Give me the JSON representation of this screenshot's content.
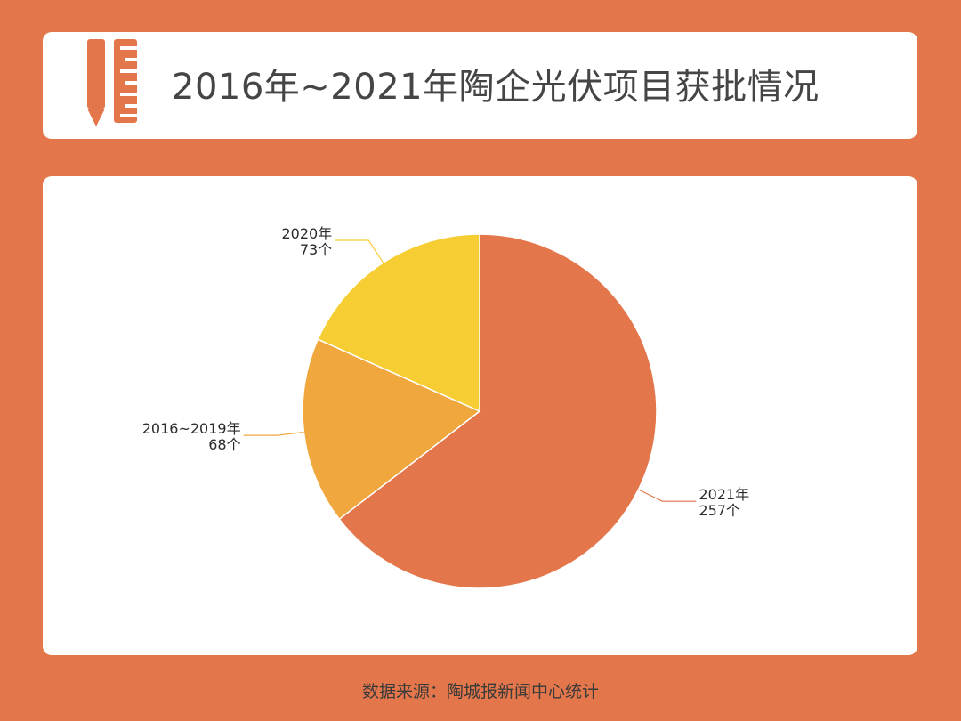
{
  "theme": {
    "background": "#E3764A",
    "card": "#FFFFFF",
    "icon_color": "#E3764A"
  },
  "header": {
    "icon": "pencil-ruler-icon",
    "title": "2016年~2021年陶企光伏项目获批情况"
  },
  "chart_data": {
    "type": "pie",
    "title": "2016年~2021年陶企光伏项目获批情况",
    "unit": "个",
    "slices": [
      {
        "label": "2021年",
        "value": 257,
        "value_text": "257个",
        "color": "#E3764A"
      },
      {
        "label": "2016~2019年",
        "value": 68,
        "value_text": "68个",
        "color": "#EFA73E"
      },
      {
        "label": "2020年",
        "value": 73,
        "value_text": "73个",
        "color": "#F6CD33"
      }
    ],
    "start": "12 o'clock",
    "direction": "clockwise",
    "legend": "none",
    "labels": "outside with leader lines"
  },
  "footer": {
    "source": "数据来源：陶城报新闻中心统计"
  }
}
